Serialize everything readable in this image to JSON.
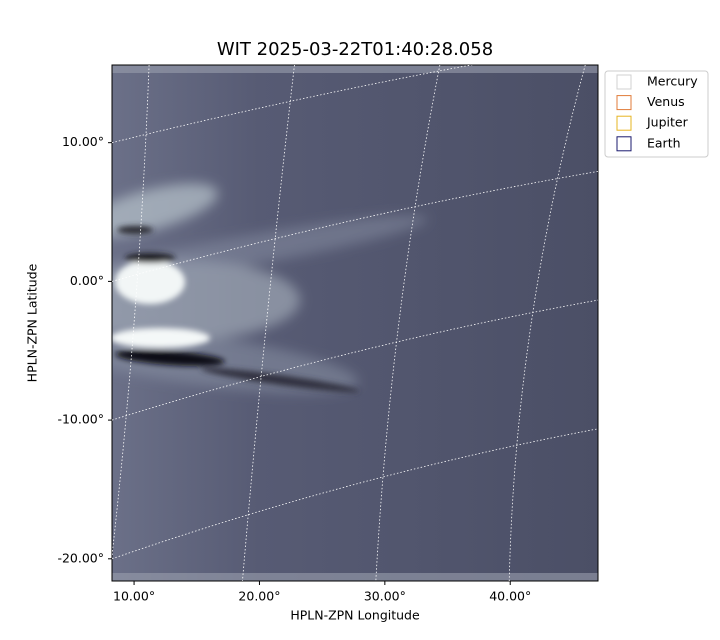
{
  "chart_data": {
    "type": "image",
    "title": "WIT 2025-03-22T01:40:28.058",
    "xlabel": "HPLN-ZPN Longitude",
    "ylabel": "HPLN-ZPN Latitude",
    "xlim": [
      8.24,
      47.0
    ],
    "ylim": [
      -21.6,
      15.6
    ],
    "xticks": [
      {
        "value": 10,
        "label": "10.00°"
      },
      {
        "value": 20,
        "label": "20.00°"
      },
      {
        "value": 30,
        "label": "30.00°"
      },
      {
        "value": 40,
        "label": "40.00°"
      }
    ],
    "yticks": [
      {
        "value": 10,
        "label": "10.00°"
      },
      {
        "value": 0,
        "label": "0.00°"
      },
      {
        "value": -10,
        "label": "-10.00°"
      },
      {
        "value": -20,
        "label": "-20.00°"
      }
    ],
    "grid": true,
    "legend": [
      {
        "name": "Mercury",
        "color": "#d0d0d0"
      },
      {
        "name": "Venus",
        "color": "#e07b39"
      },
      {
        "name": "Jupiter",
        "color": "#e6b422"
      },
      {
        "name": "Earth",
        "color": "#1a1a6e"
      }
    ]
  }
}
